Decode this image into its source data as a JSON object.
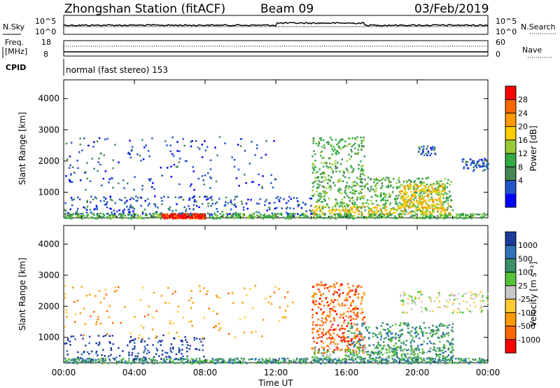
{
  "header": {
    "station": "Zhongshan Station (fitACF)",
    "beam": "Beam 09",
    "date": "03/Feb/2019"
  },
  "noise_panel": {
    "left_label": "N.Sky",
    "right_label": "N.Search",
    "left_ticks": [
      "10^5",
      "10^0"
    ],
    "right_ticks": [
      "10^5",
      "10^0"
    ]
  },
  "freq_panel": {
    "left_label_1": "Freq.",
    "left_label_2": "[MHz]",
    "right_label": "Nave",
    "left_ticks": [
      "18",
      "8"
    ],
    "right_ticks": [
      "60",
      "0"
    ]
  },
  "cpid_panel": {
    "label": "CPID",
    "mode_text": "normal (fast stereo) 153"
  },
  "chart_data": [
    {
      "type": "heatmap",
      "ylabel": "Slant Range [km]",
      "yticks": [
        1000,
        2000,
        3000,
        4000
      ],
      "ylim": [
        180,
        4600
      ],
      "xlim": [
        0,
        24
      ],
      "colorbar": {
        "label": "Power [dB]",
        "ticks": [
          "28",
          "24",
          "20",
          "16",
          "12",
          "8",
          "4"
        ],
        "colors": [
          "#ff0000",
          "#ff6600",
          "#ff9900",
          "#ffcc00",
          "#99cc33",
          "#33aa44",
          "#448855",
          "#2255cc",
          "#0000ff"
        ]
      }
    },
    {
      "type": "heatmap",
      "ylabel": "Slant Range [km]",
      "yticks": [
        1000,
        2000,
        3000,
        4000
      ],
      "ylim": [
        180,
        4600
      ],
      "xlim": [
        0,
        24
      ],
      "xlabel": "Time UT",
      "xticks": [
        "00:00",
        "04:00",
        "08:00",
        "12:00",
        "16:00",
        "20:00",
        "00:00"
      ],
      "colorbar": {
        "label": "Velocity [m s⁻¹]",
        "ticks": [
          "1000",
          "500",
          "100",
          "25",
          "-25",
          "-100",
          "-500",
          "-1000"
        ],
        "colors": [
          "#1e3c9e",
          "#2f72b8",
          "#3d8f6a",
          "#56c43a",
          "#c8c8c8",
          "#ffcc33",
          "#ff9900",
          "#ff6600",
          "#ff0000"
        ]
      }
    }
  ]
}
